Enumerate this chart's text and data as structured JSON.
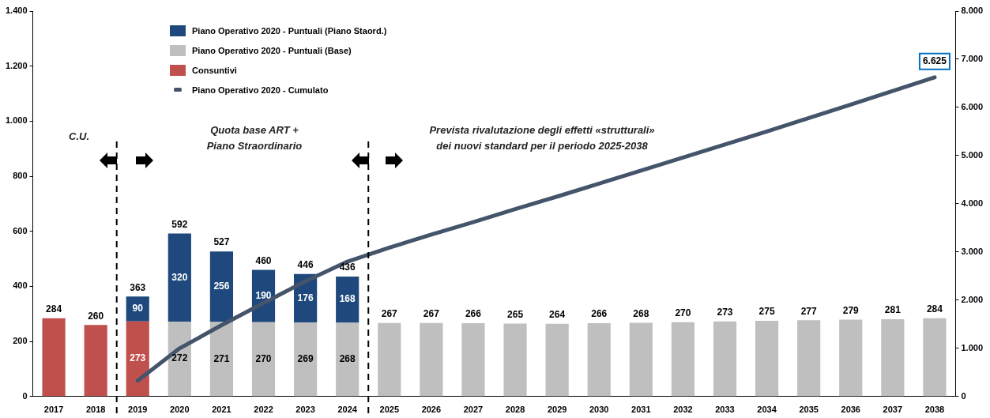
{
  "chart_data": {
    "type": "bar",
    "stacked": true,
    "x": [
      2017,
      2018,
      2019,
      2020,
      2021,
      2022,
      2023,
      2024,
      2025,
      2026,
      2027,
      2028,
      2029,
      2030,
      2031,
      2032,
      2033,
      2034,
      2035,
      2036,
      2037,
      2038
    ],
    "xlim": [
      2016.5,
      2038.5
    ],
    "xticks": [
      2017,
      2018,
      2019,
      2020,
      2021,
      2022,
      2023,
      2024,
      2025,
      2026,
      2027,
      2028,
      2029,
      2030,
      2031,
      2032,
      2033,
      2034,
      2035,
      2036,
      2037,
      2038
    ],
    "ylim": [
      0,
      1400
    ],
    "yticks": [
      {
        "value": 0,
        "label": "0"
      },
      {
        "value": 200,
        "label": "200"
      },
      {
        "value": 400,
        "label": "400"
      },
      {
        "value": 600,
        "label": "600"
      },
      {
        "value": 800,
        "label": "800"
      },
      {
        "value": 1000,
        "label": "1.000"
      },
      {
        "value": 1200,
        "label": "1.200"
      },
      {
        "value": 1400,
        "label": "1.400"
      }
    ],
    "y2lim": [
      0,
      8000
    ],
    "y2ticks": [
      {
        "value": 0,
        "label": "0"
      },
      {
        "value": 1000,
        "label": "1.000"
      },
      {
        "value": 2000,
        "label": "2.000"
      },
      {
        "value": 3000,
        "label": "3.000"
      },
      {
        "value": 4000,
        "label": "4.000"
      },
      {
        "value": 5000,
        "label": "5.000"
      },
      {
        "value": 6000,
        "label": "6.000"
      },
      {
        "value": 7000,
        "label": "7.000"
      },
      {
        "value": 8000,
        "label": "8.000"
      }
    ],
    "series": [
      {
        "name": "Consuntivi",
        "color": "#c0504d",
        "values": [
          284,
          260,
          273,
          null,
          null,
          null,
          null,
          null,
          null,
          null,
          null,
          null,
          null,
          null,
          null,
          null,
          null,
          null,
          null,
          null,
          null,
          null
        ],
        "value_labels": [
          null,
          null,
          "273",
          null,
          null,
          null,
          null,
          null,
          null,
          null,
          null,
          null,
          null,
          null,
          null,
          null,
          null,
          null,
          null,
          null,
          null,
          null
        ]
      },
      {
        "name": "Piano Operativo 2020 - Puntuali (Base)",
        "color": "#bfbfbf",
        "values": [
          null,
          null,
          null,
          272,
          271,
          270,
          269,
          268,
          267,
          267,
          266,
          265,
          264,
          266,
          268,
          270,
          273,
          275,
          277,
          279,
          281,
          284
        ],
        "value_labels": [
          null,
          null,
          null,
          "272",
          "271",
          "270",
          "269",
          "268",
          null,
          null,
          null,
          null,
          null,
          null,
          null,
          null,
          null,
          null,
          null,
          null,
          null,
          null
        ]
      },
      {
        "name": "Piano Operativo 2020 - Puntuali (Piano Staord.)",
        "color": "#1f497d",
        "values": [
          null,
          null,
          90,
          320,
          256,
          190,
          176,
          168,
          null,
          null,
          null,
          null,
          null,
          null,
          null,
          null,
          null,
          null,
          null,
          null,
          null,
          null
        ],
        "value_labels": [
          null,
          null,
          "90",
          "320",
          "256",
          "190",
          "176",
          "168",
          null,
          null,
          null,
          null,
          null,
          null,
          null,
          null,
          null,
          null,
          null,
          null,
          null,
          null
        ]
      },
      {
        "name": "Piano Operativo 2020 - Cumulato",
        "type": "line",
        "axis": "y2",
        "color": "#44546a",
        "x": [
          2019,
          2020,
          2021,
          2022,
          2023,
          2024,
          2025,
          2026,
          2027,
          2028,
          2029,
          2030,
          2031,
          2032,
          2033,
          2034,
          2035,
          2036,
          2037,
          2038
        ],
        "values": [
          330,
          1000,
          1480,
          1940,
          2390,
          2800,
          3090,
          3360,
          3620,
          3890,
          4150,
          4420,
          4690,
          4960,
          5230,
          5500,
          5780,
          6060,
          6340,
          6625
        ],
        "value_labels": [
          null,
          null,
          null,
          null,
          null,
          null,
          null,
          null,
          null,
          null,
          null,
          null,
          null,
          null,
          null,
          null,
          null,
          null,
          null,
          "6.625"
        ]
      }
    ],
    "totals": [
      "284",
      "260",
      "363",
      "592",
      "527",
      "460",
      "446",
      "436",
      "267",
      "267",
      "266",
      "265",
      "264",
      "266",
      "268",
      "270",
      "273",
      "275",
      "277",
      "279",
      "281",
      "284"
    ],
    "marker": "none",
    "line_style": "solid",
    "grid": false,
    "legend": "top left",
    "ref_lines": [
      {
        "axis": "x",
        "value": 2018.5,
        "line_style": "dashed",
        "color": "#000000"
      },
      {
        "axis": "x",
        "value": 2024.5,
        "line_style": "dashed",
        "color": "#000000"
      }
    ],
    "annotations": [
      "C.U.",
      "Quota base ART +\nPiano Straordinario",
      "Prevista rivalutazione degli effetti «strutturali»\ndei nuovi standard per il periodo 2025-2038"
    ]
  }
}
